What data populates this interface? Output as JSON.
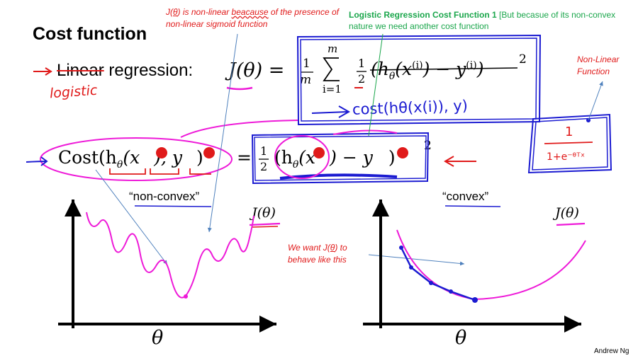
{
  "slide": {
    "title": "Cost function",
    "author": "Andrew Ng"
  },
  "row1": {
    "label_struck": "Linear",
    "label_rest": " regression:",
    "handwritten_logistic": "logistic",
    "lhs": "J(θ) =",
    "frac_top": "1",
    "frac_bottom": "m",
    "sum_top": "m",
    "sum_bottom": "i=1",
    "half_top": "1",
    "half_bottom": "2",
    "term": "(h",
    "term_sub": "θ",
    "term_x": "(x",
    "term_sup_i": "(i)",
    "term_minus_y": ") − y",
    "term_close": ")",
    "term_square": "2",
    "handwritten_cost": "cost(hθ(x(i)), y)"
  },
  "row2": {
    "cost_label": "Cost(h",
    "cost_sub": "θ",
    "cost_x": "(x",
    "cost_mid": "), y",
    "cost_close": ")",
    "equals": "=",
    "half_top": "1",
    "half_bottom": "2",
    "rhs_open": "(h",
    "rhs_sub": "θ",
    "rhs_x": "(x",
    "rhs_mid": ") − y",
    "rhs_close": ")",
    "rhs_square": "2"
  },
  "sigmoid_box": {
    "numerator": "1",
    "denominator": "1+e⁻ᶿᵀˣ"
  },
  "annotations": {
    "red_top_prefix": "J(",
    "red_top_theta": "θ",
    "red_top_mid": ") is non-linear ",
    "red_top_misspelled": "beacause",
    "red_top_rest": " of the presence of non-linear sigmoid function",
    "green_bold": "Logistic Regression Cost Function 1",
    "green_rest": " [But becasue of its non-convex nature we need another cost function",
    "nonlinear_line1": "Non-Linear",
    "nonlinear_line2": "Function",
    "want_prefix": "We want J(",
    "want_theta": "θ",
    "want_rest": ")  to behave like this"
  },
  "left_plot": {
    "quote": "“non-convex”",
    "ylabel": "J(θ)",
    "xlabel": "θ"
  },
  "right_plot": {
    "quote": "“convex”",
    "ylabel": "J(θ)",
    "xlabel": "θ"
  },
  "colors": {
    "ink_magenta": "#ee1ad8",
    "ink_blue": "#1b1bd1",
    "ink_red": "#e01a1a",
    "arrow_blue": "#4f81bd",
    "annot_green": "#1aa64b"
  }
}
